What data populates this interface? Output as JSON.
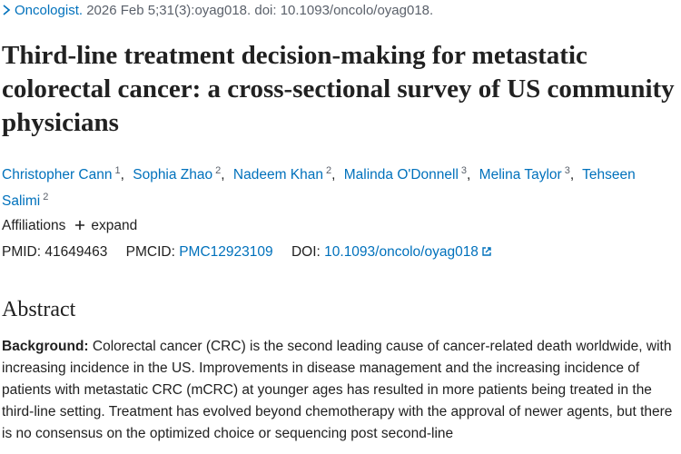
{
  "citation": {
    "journal": "Oncologist.",
    "details": "2026 Feb 5;31(3):oyag018. doi: 10.1093/oncolo/oyag018."
  },
  "title": "Third-line treatment decision-making for metastatic colorectal cancer: a cross-sectional survey of US community physicians",
  "authors": {
    "separator": ",",
    "list": [
      {
        "name": "Christopher Cann",
        "affiliation": "1"
      },
      {
        "name": "Sophia Zhao",
        "affiliation": "2"
      },
      {
        "name": "Nadeem Khan",
        "affiliation": "2"
      },
      {
        "name": "Malinda O'Donnell",
        "affiliation": "3"
      },
      {
        "name": "Melina Taylor",
        "affiliation": "3"
      },
      {
        "name": "Tehseen Salimi",
        "affiliation": "2"
      }
    ]
  },
  "affiliations": {
    "label": "Affiliations",
    "toggle": "expand"
  },
  "identifiers": [
    {
      "label": "PMID:",
      "value": "41649463"
    },
    {
      "label": "PMCID:",
      "value": "PMC12923109"
    },
    {
      "label": "DOI:",
      "value": "10.1093/oncolo/oyag018"
    }
  ],
  "abstract": {
    "heading": "Abstract",
    "sections": [
      {
        "label": "Background:",
        "text": "Colorectal cancer (CRC) is the second leading cause of cancer-related death worldwide, with increasing incidence in the US. Improvements in disease management and the increasing incidence of patients with metastatic CRC (mCRC) at younger ages has resulted in more patients being treated in the third-line setting. Treatment has evolved beyond chemotherapy with the approval of newer agents, but there is no consensus on the optimized choice or sequencing post second-line"
      }
    ]
  }
}
